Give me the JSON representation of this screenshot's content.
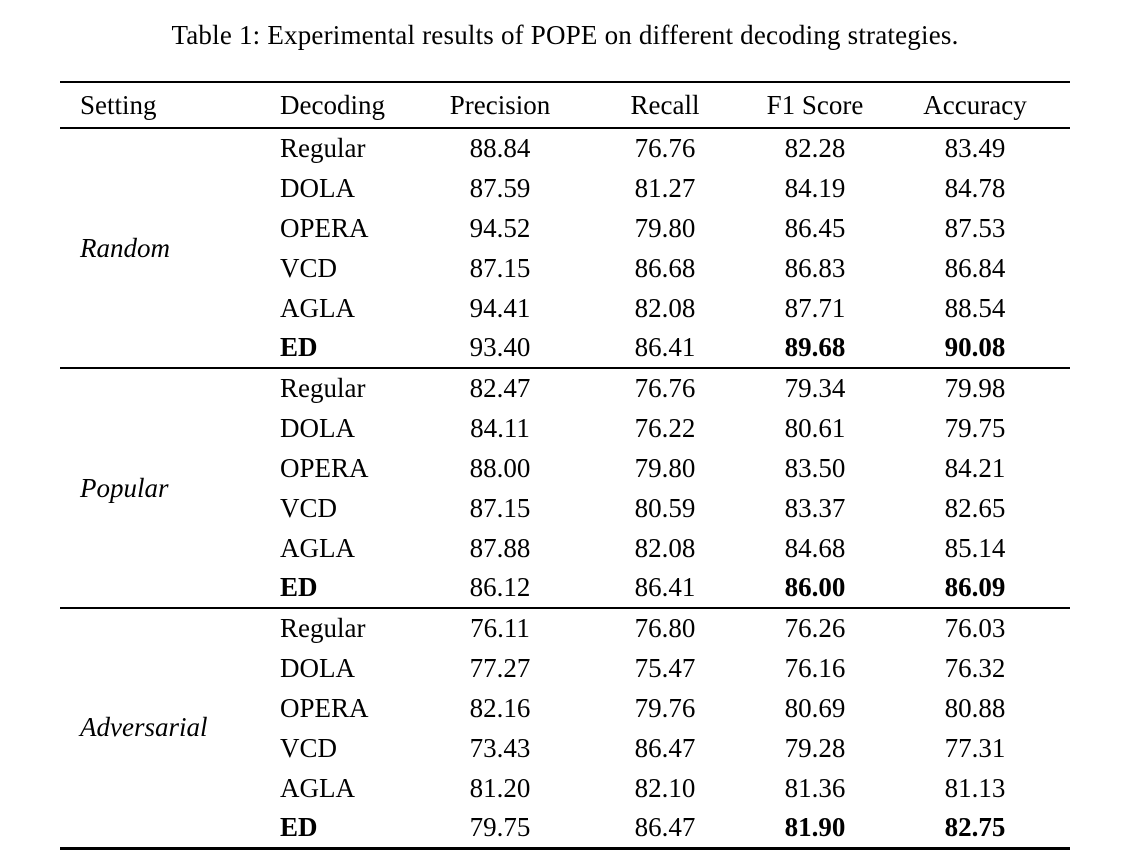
{
  "title": "Table 1: Experimental results of POPE on different decoding strategies.",
  "table": {
    "headers": [
      "Setting",
      "Decoding",
      "Precision",
      "Recall",
      "F1 Score",
      "Accuracy"
    ],
    "groups": [
      {
        "setting": "Random",
        "rows": [
          {
            "decoding": "Regular",
            "precision": "88.84",
            "recall": "76.76",
            "f1": "82.28",
            "accuracy": "83.49"
          },
          {
            "decoding": "DOLA",
            "precision": "87.59",
            "recall": "81.27",
            "f1": "84.19",
            "accuracy": "84.78"
          },
          {
            "decoding": "OPERA",
            "precision": "94.52",
            "recall": "79.80",
            "f1": "86.45",
            "accuracy": "87.53"
          },
          {
            "decoding": "VCD",
            "precision": "87.15",
            "recall": "86.68",
            "f1": "86.83",
            "accuracy": "86.84"
          },
          {
            "decoding": "AGLA",
            "precision": "94.41",
            "recall": "82.08",
            "f1": "87.71",
            "accuracy": "88.54"
          },
          {
            "decoding": "ED",
            "precision": "93.40",
            "recall": "86.41",
            "f1": "89.68",
            "accuracy": "90.08"
          }
        ]
      },
      {
        "setting": "Popular",
        "rows": [
          {
            "decoding": "Regular",
            "precision": "82.47",
            "recall": "76.76",
            "f1": "79.34",
            "accuracy": "79.98"
          },
          {
            "decoding": "DOLA",
            "precision": "84.11",
            "recall": "76.22",
            "f1": "80.61",
            "accuracy": "79.75"
          },
          {
            "decoding": "OPERA",
            "precision": "88.00",
            "recall": "79.80",
            "f1": "83.50",
            "accuracy": "84.21"
          },
          {
            "decoding": "VCD",
            "precision": "87.15",
            "recall": "80.59",
            "f1": "83.37",
            "accuracy": "82.65"
          },
          {
            "decoding": "AGLA",
            "precision": "87.88",
            "recall": "82.08",
            "f1": "84.68",
            "accuracy": "85.14"
          },
          {
            "decoding": "ED",
            "precision": "86.12",
            "recall": "86.41",
            "f1": "86.00",
            "accuracy": "86.09"
          }
        ]
      },
      {
        "setting": "Adversarial",
        "rows": [
          {
            "decoding": "Regular",
            "precision": "76.11",
            "recall": "76.80",
            "f1": "76.26",
            "accuracy": "76.03"
          },
          {
            "decoding": "DOLA",
            "precision": "77.27",
            "recall": "75.47",
            "f1": "76.16",
            "accuracy": "76.32"
          },
          {
            "decoding": "OPERA",
            "precision": "82.16",
            "recall": "79.76",
            "f1": "80.69",
            "accuracy": "80.88"
          },
          {
            "decoding": "VCD",
            "precision": "73.43",
            "recall": "86.47",
            "f1": "79.28",
            "accuracy": "77.31"
          },
          {
            "decoding": "AGLA",
            "precision": "81.20",
            "recall": "82.10",
            "f1": "81.36",
            "accuracy": "81.13"
          },
          {
            "decoding": "ED",
            "precision": "79.75",
            "recall": "86.47",
            "f1": "81.90",
            "accuracy": "82.75"
          }
        ]
      }
    ]
  }
}
